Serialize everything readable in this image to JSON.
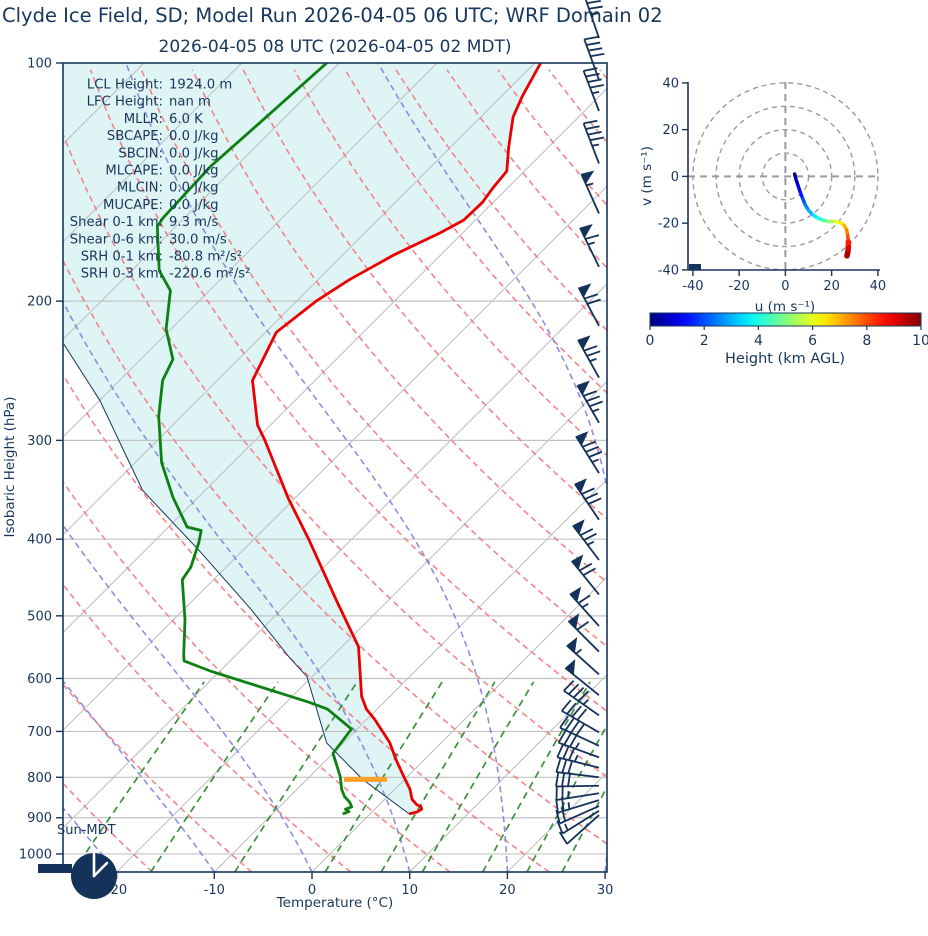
{
  "header": {
    "title": "Clyde Ice Field, SD; Model Run 2026-04-05 06 UTC; WRF Domain 02",
    "subtitle": "2026-04-05 08 UTC  (2026-04-05 02 MDT)"
  },
  "colors": {
    "text_navy": "#17365d",
    "barb_navy": "#14325a",
    "temperature_line": "#eb0000",
    "dewpoint_line": "#0c8012",
    "parcel_line": "#17365d",
    "lcl_marker": "#ffa127",
    "shade_fill": "#dff4f4",
    "gridline_gray": "#c3c3c3",
    "isotherm_gray": "#bcbcbc",
    "dry_adiabat": "#f4787d",
    "moist_adiabat": "#8282de",
    "mixing_ratio": "#2f8b2f",
    "hodograph_ring": "#9a9a9a"
  },
  "skewt": {
    "xlabel": "Temperature (°C)",
    "ylabel": "Isobaric Height (hPa)",
    "sun_label": "Sun-MDT",
    "clock_icon": "clock-showing-night",
    "x_ticks": [
      -20,
      -10,
      0,
      10,
      20,
      30
    ],
    "p_ticks": [
      100,
      200,
      300,
      400,
      500,
      600,
      700,
      800,
      900,
      1000
    ],
    "annotations": [
      {
        "label": "LCL Height:",
        "value": "1924.0 m"
      },
      {
        "label": "LFC Height:",
        "value": "nan m"
      },
      {
        "label": "MLLR:",
        "value": "6.0 K"
      },
      {
        "label": "SBCAPE:",
        "value": "0.0 J/kg"
      },
      {
        "label": "SBCIN:",
        "value": "0.0 J/kg"
      },
      {
        "label": "MLCAPE:",
        "value": "0.0 J/kg"
      },
      {
        "label": "MLCIN:",
        "value": "0.0 J/kg"
      },
      {
        "label": "MUCAPE:",
        "value": "0.0 J/kg"
      },
      {
        "label": "Shear 0-1 km:",
        "value": "9.3 m/s"
      },
      {
        "label": "Shear 0-6 km:",
        "value": "30.0 m/s"
      },
      {
        "label": "SRH 0-1 km:",
        "value": "-80.8 m²/s²"
      },
      {
        "label": "SRH 0-3 km:",
        "value": "-220.6 m²/s²"
      }
    ]
  },
  "hodograph": {
    "xlabel": "u (m s⁻¹)",
    "ylabel": "v (m s⁻¹)",
    "ticks": [
      -40,
      -20,
      0,
      20,
      40
    ],
    "rings": [
      10,
      20,
      30,
      40
    ]
  },
  "colorbar": {
    "label": "Height (km AGL)",
    "ticks": [
      0,
      2,
      4,
      6,
      8,
      10
    ],
    "range": [
      0,
      10
    ],
    "colormap": "jet"
  },
  "chart_data": [
    {
      "type": "line",
      "name": "skewt-sounding",
      "title": "2026-04-05 08 UTC  (2026-04-05 02 MDT)",
      "xlabel": "Temperature (°C)",
      "ylabel": "Isobaric Height (hPa)",
      "xlim_surface_C": [
        -25,
        30
      ],
      "p_range_hPa": [
        1054,
        100
      ],
      "series": [
        {
          "name": "temperature_C",
          "points": [
            [
              890,
              4.0
            ],
            [
              885,
              4.6
            ],
            [
              878,
              4.8
            ],
            [
              872,
              4.5
            ],
            [
              866,
              3.8
            ],
            [
              853,
              2.8
            ],
            [
              829,
              1.6
            ],
            [
              798,
              -0.4
            ],
            [
              760,
              -2.9
            ],
            [
              723,
              -5.3
            ],
            [
              676,
              -9.2
            ],
            [
              656,
              -11.1
            ],
            [
              632,
              -12.9
            ],
            [
              547,
              -18.3
            ],
            [
              478,
              -25.3
            ],
            [
              400,
              -34.4
            ],
            [
              355,
              -40.7
            ],
            [
              300,
              -49.0
            ],
            [
              287,
              -51.3
            ],
            [
              252,
              -56.4
            ],
            [
              219,
              -58.9
            ],
            [
              200,
              -58.0
            ],
            [
              188,
              -56.8
            ],
            [
              175,
              -54.8
            ],
            [
              164,
              -52.3
            ],
            [
              158,
              -51.2
            ],
            [
              150,
              -51.1
            ],
            [
              144,
              -51.5
            ],
            [
              137,
              -51.8
            ],
            [
              128,
              -54.0
            ],
            [
              117,
              -56.7
            ],
            [
              110,
              -57.9
            ],
            [
              100,
              -59.4
            ]
          ]
        },
        {
          "name": "dewpoint_C",
          "points": [
            [
              890,
              -2.8
            ],
            [
              884,
              -2.4
            ],
            [
              878,
              -3.0
            ],
            [
              872,
              -2.6
            ],
            [
              860,
              -3.3
            ],
            [
              846,
              -4.4
            ],
            [
              829,
              -5.4
            ],
            [
              798,
              -6.9
            ],
            [
              746,
              -10.0
            ],
            [
              695,
              -10.6
            ],
            [
              656,
              -15.1
            ],
            [
              643,
              -17.7
            ],
            [
              632,
              -20.2
            ],
            [
              588,
              -30.8
            ],
            [
              570,
              -34.7
            ],
            [
              561,
              -35.3
            ],
            [
              506,
              -38.8
            ],
            [
              450,
              -43.2
            ],
            [
              434,
              -43.6
            ],
            [
              404,
              -45.3
            ],
            [
              390,
              -46.3
            ],
            [
              386,
              -48.1
            ],
            [
              354,
              -52.6
            ],
            [
              320,
              -57.3
            ],
            [
              280,
              -62.3
            ],
            [
              252,
              -65.6
            ],
            [
              237,
              -66.7
            ],
            [
              217,
              -70.5
            ],
            [
              194,
              -74.0
            ],
            [
              183,
              -77.2
            ],
            [
              161,
              -81.9
            ],
            [
              157,
              -82.2
            ],
            [
              135,
              -82.6
            ],
            [
              118,
              -82.0
            ],
            [
              100,
              -81.3
            ]
          ]
        },
        {
          "name": "parcel_path_C",
          "points": [
            [
              890,
              4.0
            ],
            [
              805,
              -4.3
            ],
            [
              724,
              -11.7
            ],
            [
              597,
              -20.5
            ],
            [
              565,
              -24.2
            ],
            [
              490,
              -33.2
            ],
            [
              415,
              -44.2
            ],
            [
              347,
              -56.4
            ],
            [
              267,
              -70.0
            ],
            [
              226,
              -79.6
            ]
          ]
        }
      ],
      "lcl_marker": {
        "p_hPa": 805,
        "t_from_C": -6.2,
        "t_to_C": -1.8
      },
      "wind_barbs": {
        "units": "kt",
        "levels_p_spd_dir": [
          [
            93,
            35,
            341
          ],
          [
            105,
            40,
            340
          ],
          [
            115,
            45,
            339
          ],
          [
            134,
            45,
            339
          ],
          [
            155,
            55,
            336
          ],
          [
            181,
            65,
            334
          ],
          [
            215,
            70,
            332
          ],
          [
            250,
            75,
            331
          ],
          [
            285,
            85,
            330
          ],
          [
            330,
            85,
            328
          ],
          [
            378,
            80,
            326
          ],
          [
            425,
            75,
            323
          ],
          [
            470,
            70,
            321
          ],
          [
            515,
            65,
            318
          ],
          [
            555,
            60,
            315
          ],
          [
            593,
            55,
            312
          ],
          [
            630,
            50,
            309
          ],
          [
            668,
            45,
            305
          ],
          [
            702,
            40,
            300
          ],
          [
            730,
            40,
            295
          ],
          [
            755,
            35,
            290
          ],
          [
            778,
            35,
            284
          ],
          [
            800,
            30,
            277
          ],
          [
            820,
            30,
            269
          ],
          [
            838,
            25,
            261
          ],
          [
            855,
            25,
            253
          ],
          [
            870,
            20,
            246
          ],
          [
            882,
            15,
            238
          ],
          [
            893,
            10,
            228
          ]
        ]
      },
      "reference": {
        "isotherms_C": {
          "from": -120,
          "to": 40,
          "step": 10
        },
        "dry_adiabats_theta_K": {
          "from": 233,
          "to": 453,
          "step": 10
        },
        "moist_adiabats_start_C": {
          "from": -70,
          "to": 30,
          "step": 10
        },
        "mixing_ratio_g_kg": [
          0.5,
          1,
          2,
          4,
          6,
          8,
          12,
          16,
          20
        ],
        "mixing_ratio_top_hPa": 600
      }
    },
    {
      "type": "line",
      "name": "hodograph",
      "xlabel": "u (m s⁻¹)",
      "ylabel": "v (m s⁻¹)",
      "xlim": [
        -40,
        40
      ],
      "ylim": [
        -40,
        40
      ],
      "rings_m_s": [
        10,
        20,
        30,
        40
      ],
      "trace_u_v_heightkm": [
        [
          4,
          1,
          0
        ],
        [
          4.5,
          -1,
          0.5
        ],
        [
          5.5,
          -4,
          1
        ],
        [
          6.5,
          -7,
          1.5
        ],
        [
          7.5,
          -9.5,
          2
        ],
        [
          8.5,
          -12,
          2.5
        ],
        [
          10,
          -14.5,
          3
        ],
        [
          12,
          -16.5,
          3.5
        ],
        [
          14,
          -17.8,
          4
        ],
        [
          16,
          -18.6,
          4.5
        ],
        [
          18,
          -19.2,
          5
        ],
        [
          20,
          -19.3,
          5.5
        ],
        [
          22,
          -19.3,
          6
        ],
        [
          24,
          -19.8,
          6.5
        ],
        [
          25.5,
          -21,
          7
        ],
        [
          26.5,
          -23,
          7.5
        ],
        [
          27,
          -25.5,
          8
        ],
        [
          27.2,
          -28,
          8.5
        ],
        [
          27.2,
          -30.5,
          9
        ],
        [
          27,
          -32.5,
          9.5
        ],
        [
          26.6,
          -34,
          10
        ]
      ]
    },
    {
      "type": "colorbar",
      "name": "height-colorbar",
      "label": "Height (km AGL)",
      "ticks": [
        0,
        2,
        4,
        6,
        8,
        10
      ],
      "range": [
        0,
        10
      ],
      "colormap": "jet"
    }
  ]
}
